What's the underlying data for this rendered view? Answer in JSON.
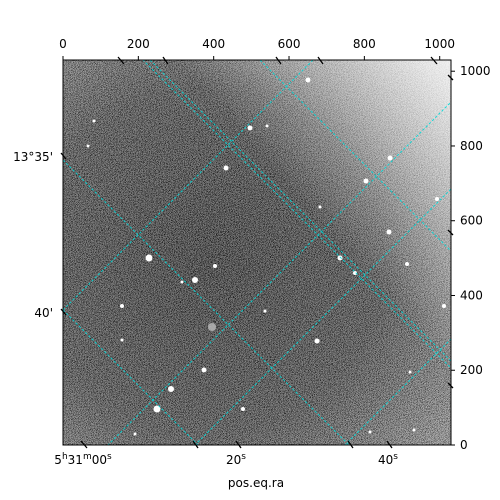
{
  "chart_data": {
    "type": "image",
    "xlabel": "pos.eq.ra",
    "ylabel": "",
    "pixel_axes": {
      "x_range": [
        0,
        1030
      ],
      "y_range": [
        0,
        1030
      ],
      "top_ticks": [
        "0",
        "200",
        "400",
        "600",
        "800",
        "1000"
      ],
      "top_tick_values": [
        0,
        200,
        400,
        600,
        800,
        1000
      ],
      "right_ticks": [
        "0",
        "200",
        "400",
        "600",
        "800",
        "1000"
      ],
      "right_tick_values": [
        0,
        200,
        400,
        600,
        800,
        1000
      ]
    },
    "world_axes": {
      "bottom_labels": [
        {
          "main": "5",
          "sup1": "h",
          "mid": "31",
          "sup2": "m",
          "tail": "00",
          "sup3": "s"
        },
        {
          "main": "20",
          "sup3": "s"
        },
        {
          "main": "40",
          "sup3": "s"
        }
      ],
      "left_labels": [
        "13°35'",
        "40'"
      ]
    },
    "grid": true,
    "grid_color": "#00d8d8",
    "colormap": "gray"
  }
}
